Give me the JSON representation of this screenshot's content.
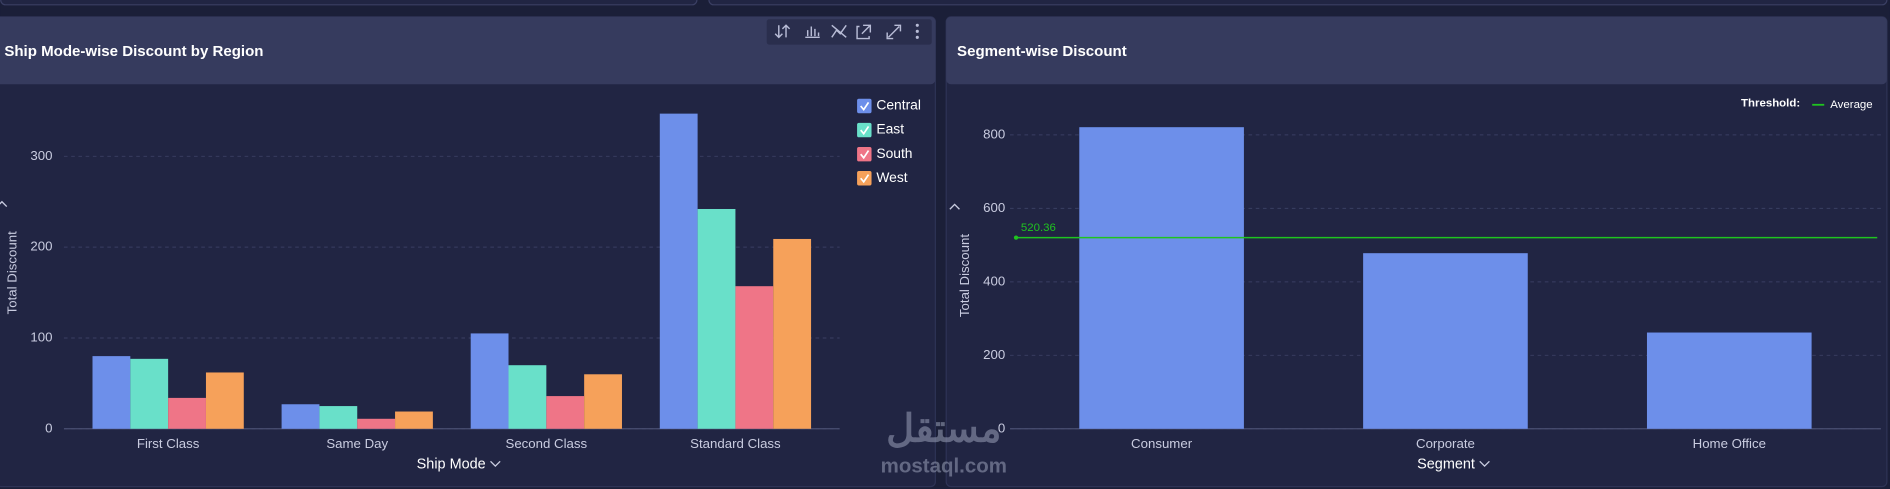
{
  "chart_data": [
    {
      "type": "bar",
      "title": "Ship Mode-wise Discount by Region",
      "x_label": "Ship Mode",
      "y_label": "Total Discount",
      "categories": [
        "First Class",
        "Same Day",
        "Second Class",
        "Standard Class"
      ],
      "series": [
        {
          "name": "Central",
          "color": "#6d8fea",
          "values": [
            80,
            27,
            105,
            347
          ]
        },
        {
          "name": "East",
          "color": "#69e0c9",
          "values": [
            77,
            25,
            70,
            242
          ]
        },
        {
          "name": "South",
          "color": "#ef7587",
          "values": [
            34,
            11,
            36,
            157
          ]
        },
        {
          "name": "West",
          "color": "#f6a15a",
          "values": [
            62,
            19,
            60,
            209
          ]
        }
      ],
      "ylim": [
        0,
        370
      ],
      "yticks": [
        0,
        100,
        200,
        300
      ],
      "grid": true,
      "legend": "top-right"
    },
    {
      "type": "bar",
      "title": "Segment-wise Discount",
      "x_label": "Segment",
      "y_label": "Total Discount",
      "categories": [
        "Consumer",
        "Corporate",
        "Home Office"
      ],
      "values": [
        821,
        478,
        262
      ],
      "color": "#6d8fea",
      "ylim": [
        0,
        900
      ],
      "yticks": [
        0,
        200,
        400,
        600,
        800
      ],
      "grid": true,
      "threshold": {
        "label": "Threshold:",
        "name": "Average",
        "value": 520.36,
        "color": "#1fc41f"
      }
    }
  ],
  "watermark": {
    "logo": "مستقل",
    "url": "mostaql.com"
  }
}
